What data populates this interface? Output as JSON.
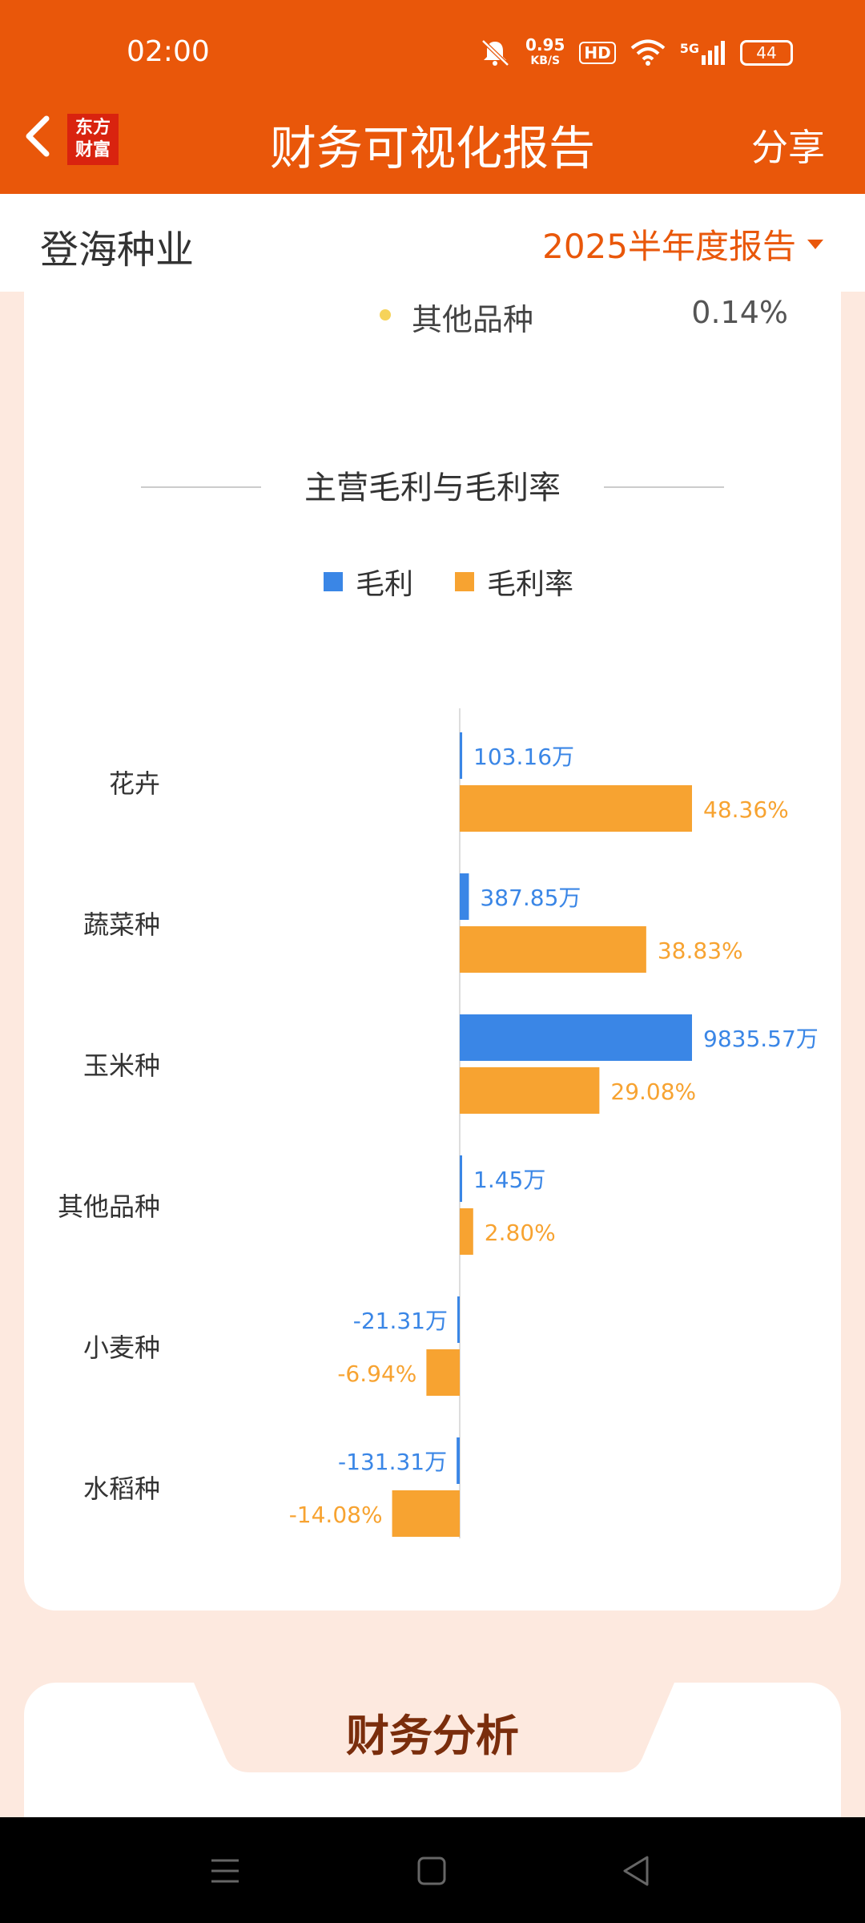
{
  "status_bar": {
    "time": "02:00",
    "speed_value": "0.95",
    "speed_unit": "KB/S",
    "hd": "HD",
    "network": "5G",
    "battery": "44"
  },
  "header": {
    "logo_line1": "东方",
    "logo_line2": "财富",
    "title": "财务可视化报告",
    "share_label": "分享"
  },
  "company": {
    "name": "登海种业",
    "report_period": "2025半年度报告"
  },
  "previous_legend": {
    "name": "其他品种",
    "percent": "0.14%",
    "color": "#f6d35a"
  },
  "section": {
    "title": "主营毛利与毛利率"
  },
  "legend": [
    {
      "label": "毛利",
      "color": "#3a86e6"
    },
    {
      "label": "毛利率",
      "color": "#f7a331"
    }
  ],
  "chart_data": {
    "type": "bar",
    "orientation": "horizontal",
    "categories": [
      "花卉",
      "蔬菜种",
      "玉米种",
      "其他品种",
      "小麦种",
      "水稻种"
    ],
    "series": [
      {
        "name": "毛利",
        "unit": "万",
        "color": "#3a86e6",
        "values": [
          103.16,
          387.85,
          9835.57,
          1.45,
          -21.31,
          -131.31
        ],
        "labels": [
          "103.16万",
          "387.85万",
          "9835.57万",
          "1.45万",
          "-21.31万",
          "-131.31万"
        ]
      },
      {
        "name": "毛利率",
        "unit": "%",
        "color": "#f7a331",
        "values": [
          48.36,
          38.83,
          29.08,
          2.8,
          -6.94,
          -14.08
        ],
        "labels": [
          "48.36%",
          "38.83%",
          "29.08%",
          "2.80%",
          "-6.94%",
          "-14.08%"
        ]
      }
    ]
  },
  "analysis": {
    "title": "财务分析"
  }
}
